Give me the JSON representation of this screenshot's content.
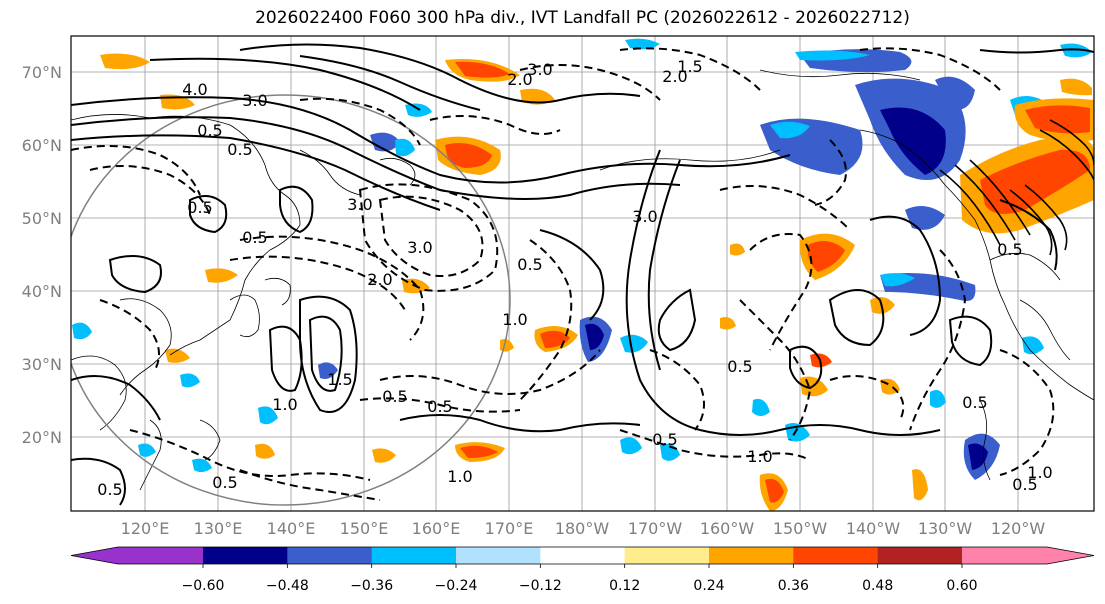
{
  "title": "2026022400 F060 300 hPa div., IVT Landfall PC (2026022612 - 2026022712)",
  "map": {
    "lon_labels": [
      "120°E",
      "130°E",
      "140°E",
      "150°E",
      "160°E",
      "170°E",
      "180°W",
      "170°W",
      "160°W",
      "150°W",
      "140°W",
      "130°W",
      "120°W"
    ],
    "lat_labels": [
      "70°N",
      "60°N",
      "50°N",
      "40°N",
      "30°N",
      "20°N"
    ],
    "contour_labels": [
      "4.0",
      "3.0",
      "3.0",
      "1.5",
      "2.0",
      "2.0",
      "3.0",
      "0.5",
      "0.5",
      "0.5",
      "0.5",
      "3.0",
      "3.0",
      "2.0",
      "1.0",
      "0.5",
      "1.5",
      "1.0",
      "1.0",
      "0.5",
      "0.5",
      "0.5",
      "0.5",
      "1.0",
      "0.5",
      "0.5",
      "1.0",
      "0.5",
      "0.5",
      "0.5"
    ]
  },
  "colorbar": {
    "colors": [
      "#9932cc",
      "#00008b",
      "#3a5fcd",
      "#00bfff",
      "#b0e2ff",
      "#ffffff",
      "#ffec8b",
      "#ffa500",
      "#ff4500",
      "#b22222",
      "#ff82ab"
    ],
    "tick_labels": [
      "−0.60",
      "−0.48",
      "−0.36",
      "−0.24",
      "−0.12",
      "0.12",
      "0.24",
      "0.36",
      "0.48",
      "0.60"
    ]
  }
}
